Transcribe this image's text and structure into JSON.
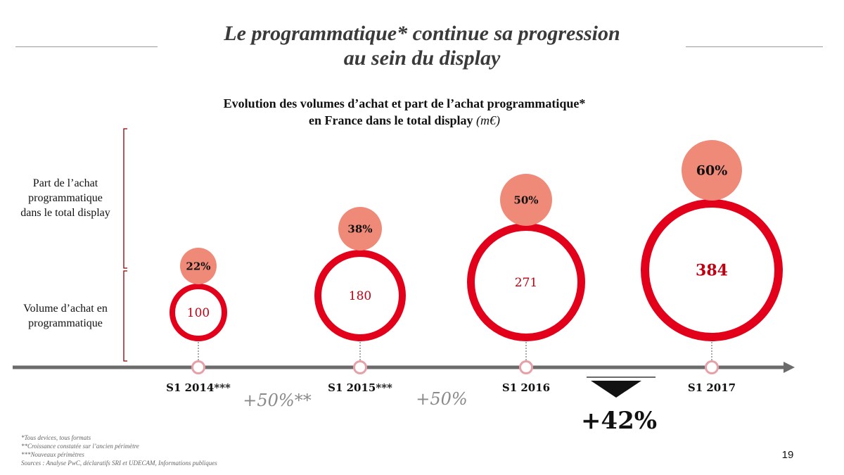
{
  "title": {
    "line1": "Le programmatique* continue sa progression",
    "line2": "au sein du display"
  },
  "subtitle": {
    "line1": "Evolution des volumes d’achat et part de l’achat programmatique*",
    "line2": "en France dans le total display",
    "unit": "(m€)"
  },
  "side_labels": {
    "share": [
      "Part de l’achat",
      "programmatique",
      "dans le total display"
    ],
    "volume": [
      "Volume d’achat en",
      "programmatique"
    ]
  },
  "chart_data": {
    "type": "bubble-timeline",
    "categories": [
      "S1 2014***",
      "S1 2015***",
      "S1 2016",
      "S1 2017"
    ],
    "series": [
      {
        "values": [
          100,
          180,
          271,
          384
        ]
      },
      {
        "values": [
          22,
          38,
          50,
          60
        ]
      }
    ],
    "growth": [
      {
        "between": [
          "S1 2014***",
          "S1 2015***"
        ],
        "label": "+50%**"
      },
      {
        "between": [
          "S1 2015***",
          "S1 2016"
        ],
        "label": "+50%"
      },
      {
        "between": [
          "S1 2016",
          "S1 2017"
        ],
        "label": "+42%"
      }
    ],
    "share_labels": [
      "22%",
      "38%",
      "50%",
      "60%"
    ],
    "colors": {
      "volume_ring": "#e2001a",
      "volume_text": "#c00010",
      "share_bubble": "#f08a78",
      "axis": "#6b6b6b",
      "marker": "#e8a0a8",
      "bracket": "#8b0000",
      "growth_text": "#8a8a8a"
    }
  },
  "footnotes": [
    "*Tous devices, tous formats",
    "**Croissance constatée sur l’ancien périmètre",
    "***Nouveaux périmètres",
    "Sources : Analyse PwC, déclaratifs SRI et UDECAM, Informations publiques"
  ],
  "page_number": "19"
}
